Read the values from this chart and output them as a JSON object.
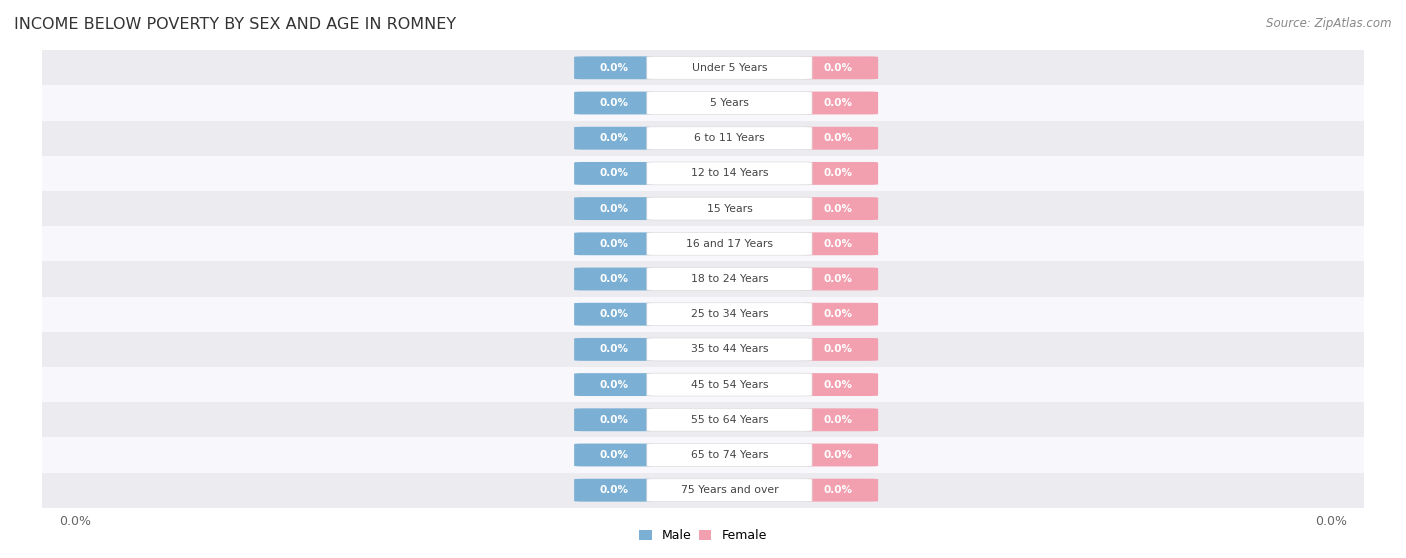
{
  "title": "INCOME BELOW POVERTY BY SEX AND AGE IN ROMNEY",
  "source": "Source: ZipAtlas.com",
  "categories": [
    "Under 5 Years",
    "5 Years",
    "6 to 11 Years",
    "12 to 14 Years",
    "15 Years",
    "16 and 17 Years",
    "18 to 24 Years",
    "25 to 34 Years",
    "35 to 44 Years",
    "45 to 54 Years",
    "55 to 64 Years",
    "65 to 74 Years",
    "75 Years and over"
  ],
  "male_values": [
    0.0,
    0.0,
    0.0,
    0.0,
    0.0,
    0.0,
    0.0,
    0.0,
    0.0,
    0.0,
    0.0,
    0.0,
    0.0
  ],
  "female_values": [
    0.0,
    0.0,
    0.0,
    0.0,
    0.0,
    0.0,
    0.0,
    0.0,
    0.0,
    0.0,
    0.0,
    0.0,
    0.0
  ],
  "male_color": "#7bafd4",
  "female_color": "#f2a0b0",
  "category_text_color": "#444444",
  "row_bg_color_odd": "#ebebf0",
  "row_bg_color_even": "#f8f8fc",
  "background_color": "#ffffff",
  "title_fontsize": 11.5,
  "source_fontsize": 8.5,
  "bar_height": 0.62,
  "legend_male": "Male",
  "legend_female": "Female",
  "axis_label_left": "0.0%",
  "axis_label_right": "0.0%"
}
